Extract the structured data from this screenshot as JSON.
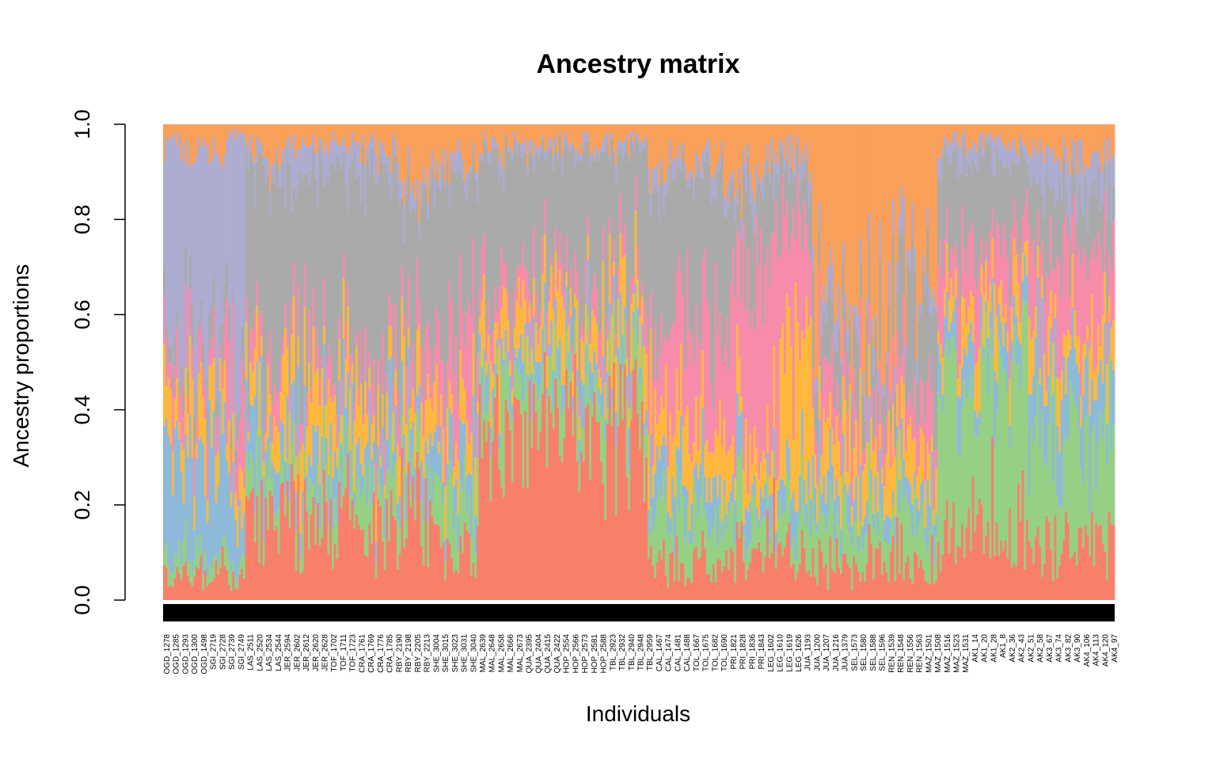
{
  "chart_data": {
    "type": "bar",
    "stacked": true,
    "title": "Ancestry matrix",
    "xlabel": "Individuals",
    "ylabel": "Ancestry proportions",
    "ylim": [
      0,
      1
    ],
    "yticks": [
      "0.0",
      "0.2",
      "0.4",
      "0.6",
      "0.8",
      "1.0"
    ],
    "legend": "none",
    "grid": false,
    "n_individuals": 440,
    "component_colors": [
      "#F8806A",
      "#96D085",
      "#8EBAD9",
      "#FFB83F",
      "#F68CAA",
      "#AAAAAA",
      "#ADACD1",
      "#F9A05A"
    ],
    "x_tick_labels": [
      "OGD_1278",
      "OGD_1285",
      "OGD_1293",
      "OGD_1300",
      "OGD_1498",
      "SGI_2719",
      "SGI_2728",
      "SGI_2739",
      "SGI_2749",
      "LAS_2511",
      "LAS_2520",
      "LAS_2534",
      "LAS_2544",
      "JER_2594",
      "JER_2602",
      "JER_2612",
      "JER_2620",
      "JER_2628",
      "TOF_1702",
      "TOF_1711",
      "TOF_1723",
      "CRA_1761",
      "CRA_1769",
      "CRA_1776",
      "CRA_1785",
      "RBY_2190",
      "RBY_2198",
      "RBY_2205",
      "RBY_2213",
      "SHE_3004",
      "SHE_3015",
      "SHE_3023",
      "SHE_3031",
      "SHE_3040",
      "MAL_2639",
      "MAL_2648",
      "MAL_2658",
      "MAL_2666",
      "MAL_2673",
      "QUA_2395",
      "QUA_2404",
      "QUA_2415",
      "QUA_2422",
      "HOP_2554",
      "HOP_2566",
      "HOP_2573",
      "HOP_2581",
      "HOP_2588",
      "TBL_2923",
      "TBL_2932",
      "TBL_2940",
      "TBL_2948",
      "TBL_2959",
      "CAL_1467",
      "CAL_1474",
      "CAL_1481",
      "CAL_1488",
      "TOL_1667",
      "TOL_1675",
      "TOL_1682",
      "TOL_1690",
      "PRI_1821",
      "PRI_1828",
      "PRI_1836",
      "PRI_1843",
      "LEG_1602",
      "LEG_1610",
      "LEG_1619",
      "LEG_1626",
      "JUA_1193",
      "JUA_1200",
      "JUA_1207",
      "JUA_1216",
      "JUA_1379",
      "SEL_1573",
      "SEL_1580",
      "SEL_1588",
      "SEL_1596",
      "REN_1539",
      "REN_1548",
      "REN_1556",
      "REN_1563",
      "MAZ_1501",
      "MAZ_1508",
      "MAZ_1516",
      "MAZ_1523",
      "MAZ_1531",
      "AK1_14",
      "AK1_20",
      "AK1_28",
      "AK1_8",
      "AK2_36",
      "AK2_43",
      "AK2_51",
      "AK2_58",
      "AK3_67",
      "AK3_74",
      "AK3_82",
      "AK3_90",
      "AK4_106",
      "AK4_113",
      "AK4_120",
      "AK4_97"
    ],
    "groups": [
      {
        "from": 0,
        "to": 29,
        "means": [
          0.06,
          0.04,
          0.22,
          0.1,
          0.08,
          0.05,
          0.4,
          0.05
        ]
      },
      {
        "from": 29,
        "to": 38,
        "means": [
          0.04,
          0.03,
          0.12,
          0.06,
          0.14,
          0.04,
          0.55,
          0.02
        ]
      },
      {
        "from": 38,
        "to": 55,
        "means": [
          0.18,
          0.08,
          0.1,
          0.08,
          0.06,
          0.4,
          0.04,
          0.06
        ]
      },
      {
        "from": 55,
        "to": 95,
        "means": [
          0.16,
          0.08,
          0.08,
          0.12,
          0.06,
          0.4,
          0.06,
          0.04
        ]
      },
      {
        "from": 95,
        "to": 108,
        "means": [
          0.14,
          0.08,
          0.1,
          0.08,
          0.08,
          0.42,
          0.04,
          0.06
        ]
      },
      {
        "from": 108,
        "to": 126,
        "means": [
          0.2,
          0.08,
          0.08,
          0.1,
          0.1,
          0.3,
          0.04,
          0.1
        ]
      },
      {
        "from": 126,
        "to": 146,
        "means": [
          0.1,
          0.1,
          0.08,
          0.08,
          0.16,
          0.36,
          0.04,
          0.08
        ]
      },
      {
        "from": 146,
        "to": 224,
        "means": [
          0.36,
          0.1,
          0.06,
          0.1,
          0.06,
          0.26,
          0.02,
          0.04
        ]
      },
      {
        "from": 224,
        "to": 262,
        "means": [
          0.08,
          0.1,
          0.08,
          0.12,
          0.2,
          0.3,
          0.04,
          0.08
        ]
      },
      {
        "from": 262,
        "to": 285,
        "means": [
          0.1,
          0.08,
          0.06,
          0.08,
          0.4,
          0.14,
          0.04,
          0.1
        ]
      },
      {
        "from": 285,
        "to": 300,
        "means": [
          0.1,
          0.08,
          0.06,
          0.28,
          0.28,
          0.1,
          0.04,
          0.06
        ]
      },
      {
        "from": 300,
        "to": 320,
        "means": [
          0.06,
          0.1,
          0.06,
          0.12,
          0.1,
          0.1,
          0.04,
          0.42
        ]
      },
      {
        "from": 320,
        "to": 340,
        "means": [
          0.08,
          0.08,
          0.06,
          0.1,
          0.08,
          0.12,
          0.04,
          0.44
        ]
      },
      {
        "from": 340,
        "to": 358,
        "means": [
          0.08,
          0.1,
          0.06,
          0.1,
          0.1,
          0.22,
          0.04,
          0.3
        ]
      },
      {
        "from": 358,
        "to": 400,
        "means": [
          0.16,
          0.32,
          0.08,
          0.08,
          0.12,
          0.16,
          0.04,
          0.04
        ]
      },
      {
        "from": 400,
        "to": 440,
        "means": [
          0.12,
          0.22,
          0.14,
          0.08,
          0.18,
          0.12,
          0.08,
          0.06
        ]
      }
    ]
  }
}
